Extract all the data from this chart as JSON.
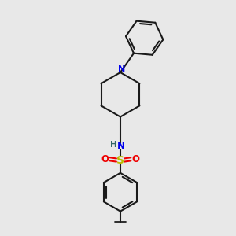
{
  "bg_color": "#e8e8e8",
  "bond_color": "#1a1a1a",
  "N_color": "#0000ee",
  "S_color": "#bbbb00",
  "O_color": "#ee0000",
  "H_color": "#336666",
  "line_width": 1.5,
  "fig_w": 3.0,
  "fig_h": 3.0,
  "dpi": 100,
  "xlim": [
    0,
    10
  ],
  "ylim": [
    0,
    10
  ]
}
